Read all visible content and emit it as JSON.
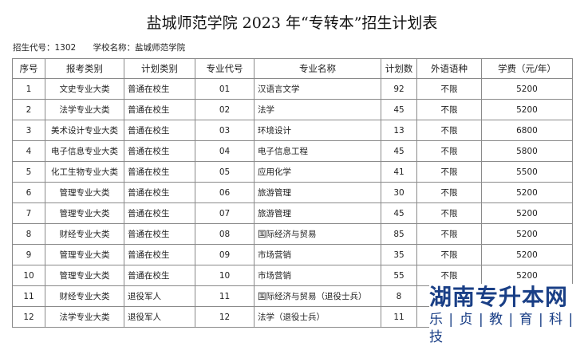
{
  "title": "盐城师范学院 2023 年“专转本”招生计划表",
  "meta": {
    "code": "招生代号：1302",
    "school": "学校名称：盐城师范学院"
  },
  "headers": [
    "序号",
    "报考类别",
    "计划类别",
    "专业代号",
    "专业名称",
    "计划数",
    "外语语种",
    "学费（元/年）"
  ],
  "rows": [
    [
      "1",
      "文史专业大类",
      "普通在校生",
      "01",
      "汉语言文学",
      "92",
      "不限",
      "5200"
    ],
    [
      "2",
      "法学专业大类",
      "普通在校生",
      "02",
      "法学",
      "45",
      "不限",
      "5200"
    ],
    [
      "3",
      "美术设计专业大类",
      "普通在校生",
      "03",
      "环境设计",
      "13",
      "不限",
      "6800"
    ],
    [
      "4",
      "电子信息专业大类",
      "普通在校生",
      "04",
      "电子信息工程",
      "45",
      "不限",
      "5800"
    ],
    [
      "5",
      "化工生物专业大类",
      "普通在校生",
      "05",
      "应用化学",
      "41",
      "不限",
      "5500"
    ],
    [
      "6",
      "管理专业大类",
      "普通在校生",
      "06",
      "旅游管理",
      "30",
      "不限",
      "5200"
    ],
    [
      "7",
      "管理专业大类",
      "普通在校生",
      "07",
      "旅游管理",
      "45",
      "不限",
      "5200"
    ],
    [
      "8",
      "财经专业大类",
      "普通在校生",
      "08",
      "国际经济与贸易",
      "85",
      "不限",
      "5200"
    ],
    [
      "9",
      "管理专业大类",
      "普通在校生",
      "09",
      "市场营销",
      "35",
      "不限",
      "5200"
    ],
    [
      "10",
      "管理专业大类",
      "普通在校生",
      "10",
      "市场营销",
      "55",
      "不限",
      "5200"
    ],
    [
      "11",
      "财经专业大类",
      "退役军人",
      "11",
      "国际经济与贸易（退役士兵）",
      "8",
      "",
      ""
    ],
    [
      "12",
      "法学专业大类",
      "退役军人",
      "12",
      "法学（退役士兵）",
      "11",
      "",
      ""
    ]
  ],
  "watermark": {
    "line1": "湖南专升本网",
    "line2": "乐 | 贞 | 教 | 育 | 科 | 技"
  }
}
